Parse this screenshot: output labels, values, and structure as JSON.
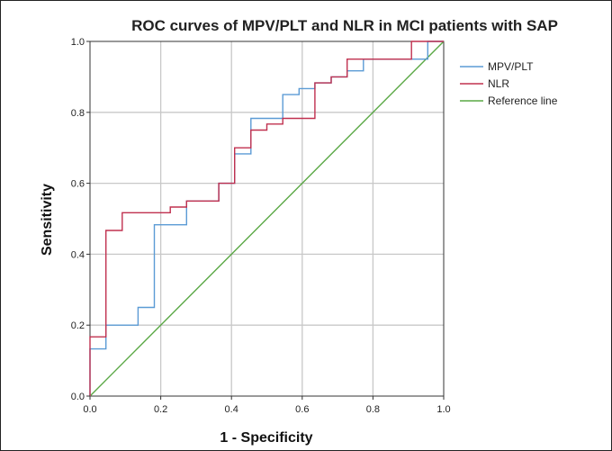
{
  "chart_data": {
    "type": "line",
    "title": "ROC curves of MPV/PLT and NLR in MCI patients with SAP",
    "xlabel": "1 - Specificity",
    "ylabel": "Sensitivity",
    "xlim": [
      0,
      1
    ],
    "ylim": [
      0,
      1
    ],
    "xticks": [
      "0.0",
      "0.2",
      "0.4",
      "0.6",
      "0.8",
      "1.0"
    ],
    "yticks": [
      "0.0",
      "0.2",
      "0.4",
      "0.6",
      "0.8",
      "1.0"
    ],
    "grid": true,
    "legend_position": "right",
    "series": [
      {
        "name": "MPV/PLT",
        "color": "#5b9bd5",
        "x": [
          0,
          0,
          0.045,
          0.045,
          0.136,
          0.136,
          0.182,
          0.182,
          0.273,
          0.273,
          0.364,
          0.364,
          0.409,
          0.409,
          0.455,
          0.455,
          0.545,
          0.545,
          0.591,
          0.591,
          0.636,
          0.636,
          0.682,
          0.682,
          0.727,
          0.727,
          0.773,
          0.773,
          0.955,
          0.955,
          1.0
        ],
        "y": [
          0,
          0.133,
          0.133,
          0.2,
          0.2,
          0.25,
          0.25,
          0.483,
          0.483,
          0.55,
          0.55,
          0.6,
          0.6,
          0.683,
          0.683,
          0.783,
          0.783,
          0.85,
          0.85,
          0.867,
          0.867,
          0.883,
          0.883,
          0.9,
          0.9,
          0.917,
          0.917,
          0.95,
          0.95,
          1.0,
          1.0
        ]
      },
      {
        "name": "NLR",
        "color": "#c0304f",
        "x": [
          0,
          0,
          0.045,
          0.045,
          0.091,
          0.091,
          0.227,
          0.227,
          0.273,
          0.273,
          0.364,
          0.364,
          0.409,
          0.409,
          0.455,
          0.455,
          0.5,
          0.5,
          0.545,
          0.545,
          0.636,
          0.636,
          0.682,
          0.682,
          0.727,
          0.727,
          0.909,
          0.909,
          1.0
        ],
        "y": [
          0,
          0.167,
          0.167,
          0.467,
          0.467,
          0.517,
          0.517,
          0.533,
          0.533,
          0.55,
          0.55,
          0.6,
          0.6,
          0.7,
          0.7,
          0.75,
          0.75,
          0.767,
          0.767,
          0.783,
          0.783,
          0.883,
          0.883,
          0.9,
          0.9,
          0.95,
          0.95,
          1.0,
          1.0
        ]
      },
      {
        "name": "Reference line",
        "color": "#5aa845",
        "x": [
          0,
          1
        ],
        "y": [
          0,
          1
        ]
      }
    ]
  }
}
